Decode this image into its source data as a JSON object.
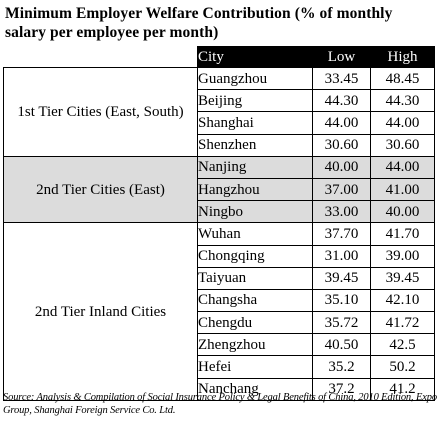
{
  "title": "Minimum  Employer Welfare Contribution (% of monthly salary per employee per month)",
  "table": {
    "headers": {
      "city": "City",
      "low": "Low",
      "high": "High"
    },
    "groups": [
      {
        "label": "1st Tier Cities (East, South)",
        "shaded": false,
        "rows": [
          {
            "city": "Guangzhou",
            "low": "33.45",
            "high": "48.45"
          },
          {
            "city": "Beijing",
            "low": "44.30",
            "high": "44.30"
          },
          {
            "city": "Shanghai",
            "low": "44.00",
            "high": "44.00"
          },
          {
            "city": "Shenzhen",
            "low": "30.60",
            "high": "30.60"
          }
        ]
      },
      {
        "label": "2nd Tier Cities (East)",
        "shaded": true,
        "rows": [
          {
            "city": "Nanjing",
            "low": "40.00",
            "high": "44.00"
          },
          {
            "city": "Hangzhou",
            "low": "37.00",
            "high": "41.00"
          },
          {
            "city": "Ningbo",
            "low": "33.00",
            "high": "40.00"
          }
        ]
      },
      {
        "label": "2nd Tier Inland Cities",
        "shaded": false,
        "rows": [
          {
            "city": "Wuhan",
            "low": "37.70",
            "high": "41.70"
          },
          {
            "city": "Chongqing",
            "low": "31.00",
            "high": "39.00"
          },
          {
            "city": "Taiyuan",
            "low": "39.45",
            "high": "39.45"
          },
          {
            "city": "Changsha",
            "low": "35.10",
            "high": "42.10"
          },
          {
            "city": "Chengdu",
            "low": "35.72",
            "high": "41.72"
          },
          {
            "city": "Zhengzhou",
            "low": "40.50",
            "high": "42.5"
          },
          {
            "city": "Hefei",
            "low": "35.2",
            "high": "50.2"
          },
          {
            "city": "Nanchang",
            "low": "37.2",
            "high": "41.2"
          }
        ]
      }
    ]
  },
  "source": "Source: Analysis & Compilation of Social Insurance Policy & Legal Benefits of China, 2010 Edition, Expo Group, Shanghai Foreign Service Co. Ltd."
}
